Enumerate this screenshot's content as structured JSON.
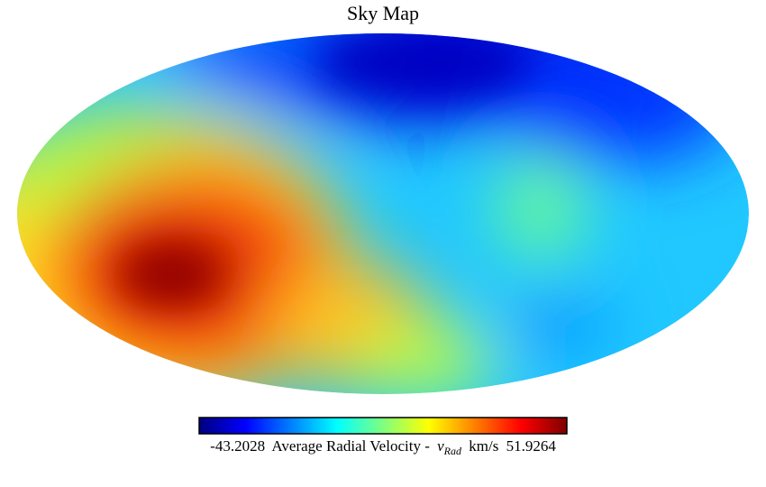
{
  "chart_data": {
    "type": "skymap",
    "title": "Sky Map",
    "projection": "mollweide",
    "colormap": "jet",
    "colorbar": {
      "min": -43.2028,
      "max": 51.9264,
      "label": "Average Radial Velocity -",
      "variable": "v",
      "subscript": "Rad",
      "unit": "km/s"
    }
  }
}
